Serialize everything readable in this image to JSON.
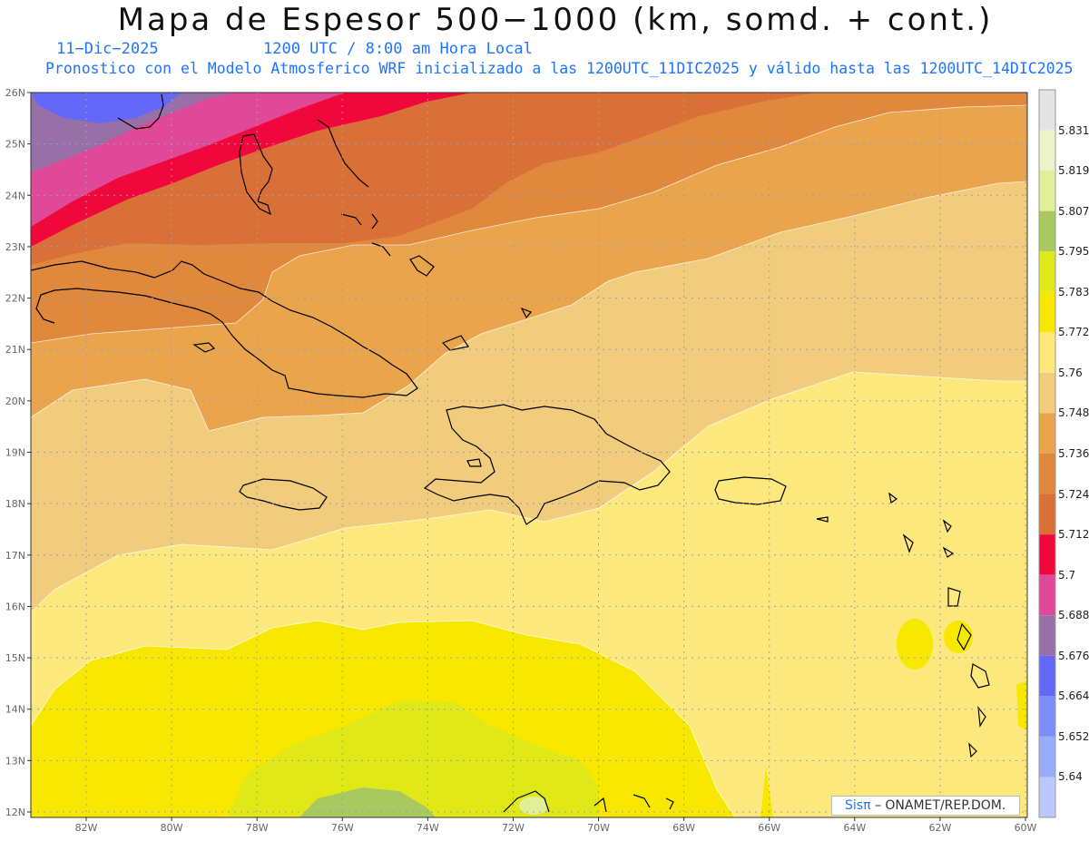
{
  "title": "Mapa de Espesor 500−1000 (km, somd. + cont.)",
  "date": "11−Dic−2025",
  "time": "1200 UTC / 8:00 am Hora Local",
  "forecast": "Pronostico con el Modelo Atmosferico WRF inicializado a las 1200UTC_11DIC2025 y válido hasta las  1200UTC_14DIC2025",
  "credit_logo": "Sisπ",
  "credit_text": " – ONAMET/REP.DOM.",
  "lat_labels": [
    "26N",
    "25N",
    "24N",
    "23N",
    "22N",
    "21N",
    "20N",
    "19N",
    "18N",
    "17N",
    "16N",
    "15N",
    "14N",
    "13N",
    "12N"
  ],
  "lon_labels": [
    "82W",
    "80W",
    "78W",
    "76W",
    "74W",
    "72W",
    "70W",
    "68W",
    "66W",
    "64W",
    "62W",
    "60W"
  ],
  "colorbar": {
    "labels": [
      "5.831",
      "5.819",
      "5.807",
      "5.795",
      "5.783",
      "5.772",
      "5.76",
      "5.748",
      "5.736",
      "5.724",
      "5.712",
      "5.7",
      "5.688",
      "5.676",
      "5.664",
      "5.652",
      "5.64"
    ],
    "colors": [
      "#e4e4e4",
      "#eaf4c8",
      "#e0f098",
      "#a8c860",
      "#e0e818",
      "#f8e800",
      "#fde87e",
      "#f0cc7c",
      "#eaa44c",
      "#e0883c",
      "#d87038",
      "#f0083c",
      "#e04898",
      "#9870a8",
      "#6468f8",
      "#7c8cf8",
      "#98acfc",
      "#bcc8fc"
    ]
  },
  "fields": {
    "purple": "#9870a8",
    "blue": "#6468f8",
    "pink": "#e04898",
    "red": "#f0083c",
    "dark_orange": "#d87038",
    "orange": "#e0883c",
    "light_orange": "#eaa44c",
    "tan": "#f0cc7c",
    "light_yellow": "#fde87e",
    "yellow": "#f8e800",
    "lime": "#e0e818",
    "green": "#a8c860",
    "pale_green": "#e0f098"
  }
}
